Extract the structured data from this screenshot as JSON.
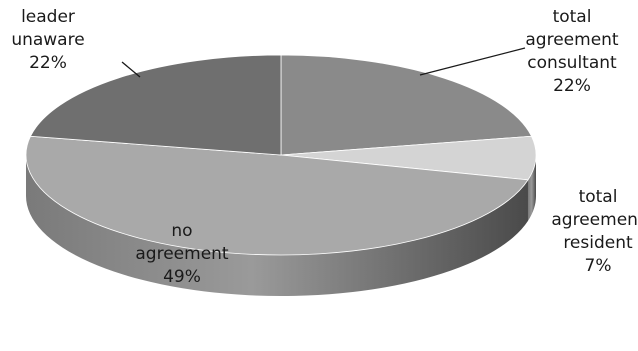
{
  "chart_data": {
    "type": "pie",
    "style": "3d",
    "colors": [
      "#8a8a8a",
      "#d4d4d4",
      "#a9a9a9",
      "#6f6f6f"
    ],
    "slices": [
      {
        "name": "total agreement consultant",
        "label_lines": [
          "total",
          "agreement",
          "consultant"
        ],
        "value": 22,
        "value_label": "22%"
      },
      {
        "name": "total agreement resident",
        "label_lines": [
          "total",
          "agreement",
          "resident"
        ],
        "value": 7,
        "value_label": "7%"
      },
      {
        "name": "no agreement",
        "label_lines": [
          "no",
          "agreement"
        ],
        "value": 49,
        "value_label": "49%"
      },
      {
        "name": "leader unaware",
        "label_lines": [
          "leader",
          "unaware"
        ],
        "value": 22,
        "value_label": "22%"
      }
    ]
  }
}
